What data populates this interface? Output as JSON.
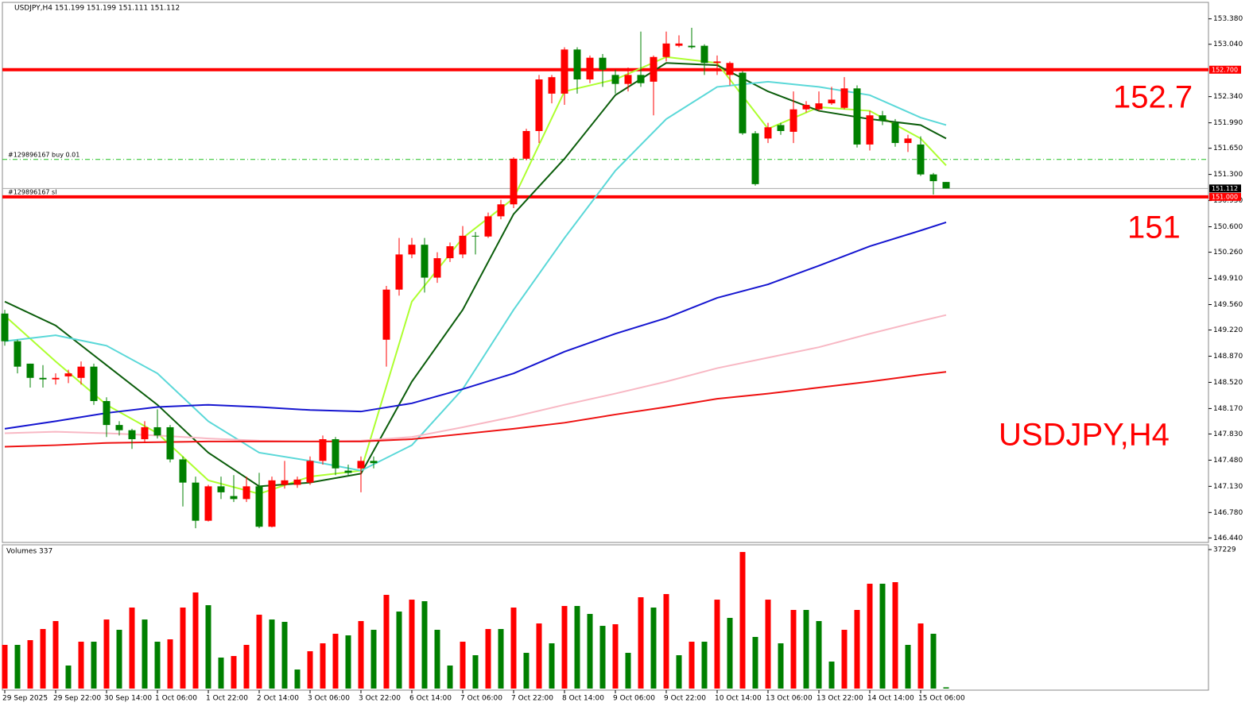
{
  "chart_data": [
    {
      "type": "candlestick",
      "title": "USDJPY,H4  151.199 151.199 151.111 151.112",
      "up_color": "#ff0000",
      "down_color": "#008000",
      "ylim": [
        146.38,
        153.6
      ],
      "yticks": [
        {
          "value": 153.38,
          "label": "153.380"
        },
        {
          "value": 153.04,
          "label": "153.040"
        },
        {
          "value": 152.34,
          "label": "152.340"
        },
        {
          "value": 151.99,
          "label": "151.990"
        },
        {
          "value": 151.65,
          "label": "151.650"
        },
        {
          "value": 151.3,
          "label": "151.300"
        },
        {
          "value": 150.95,
          "label": "150.950"
        },
        {
          "value": 150.6,
          "label": "150.600"
        },
        {
          "value": 150.26,
          "label": "150.260"
        },
        {
          "value": 149.91,
          "label": "149.910"
        },
        {
          "value": 149.56,
          "label": "149.560"
        },
        {
          "value": 149.22,
          "label": "149.220"
        },
        {
          "value": 148.87,
          "label": "148.870"
        },
        {
          "value": 148.52,
          "label": "148.520"
        },
        {
          "value": 148.17,
          "label": "148.170"
        },
        {
          "value": 147.83,
          "label": "147.830"
        },
        {
          "value": 147.48,
          "label": "147.480"
        },
        {
          "value": 147.13,
          "label": "147.130"
        },
        {
          "value": 146.78,
          "label": "146.780"
        },
        {
          "value": 146.44,
          "label": "146.440"
        }
      ],
      "x_labels": [
        {
          "index": 0,
          "label": "29 Sep 2025"
        },
        {
          "index": 4,
          "label": "29 Sep 22:00"
        },
        {
          "index": 8,
          "label": "30 Sep 14:00"
        },
        {
          "index": 12,
          "label": "1 Oct 06:00"
        },
        {
          "index": 16,
          "label": "1 Oct 22:00"
        },
        {
          "index": 20,
          "label": "2 Oct 14:00"
        },
        {
          "index": 24,
          "label": "3 Oct 06:00"
        },
        {
          "index": 28,
          "label": "3 Oct 22:00"
        },
        {
          "index": 32,
          "label": "6 Oct 14:00"
        },
        {
          "index": 36,
          "label": "7 Oct 06:00"
        },
        {
          "index": 40,
          "label": "7 Oct 22:00"
        },
        {
          "index": 44,
          "label": "8 Oct 14:00"
        },
        {
          "index": 48,
          "label": "9 Oct 06:00"
        },
        {
          "index": 52,
          "label": "9 Oct 22:00"
        },
        {
          "index": 56,
          "label": "10 Oct 14:00"
        },
        {
          "index": 60,
          "label": "13 Oct 06:00"
        },
        {
          "index": 64,
          "label": "13 Oct 22:00"
        },
        {
          "index": 68,
          "label": "14 Oct 14:00"
        },
        {
          "index": 72,
          "label": "15 Oct 06:00"
        }
      ],
      "open": [
        149.44,
        149.07,
        148.77,
        148.58,
        148.56,
        148.6,
        148.58,
        148.73,
        148.27,
        147.95,
        147.88,
        147.76,
        147.92,
        147.92,
        147.49,
        147.18,
        146.67,
        147.13,
        147.0,
        146.96,
        147.13,
        146.59,
        147.15,
        147.15,
        147.18,
        147.47,
        147.76,
        147.34,
        147.37,
        147.47,
        149.09,
        149.76,
        150.23,
        150.36,
        149.92,
        150.18,
        150.23,
        150.48,
        150.47,
        150.74,
        150.9,
        151.51,
        151.88,
        152.38,
        152.38,
        152.97,
        152.57,
        152.86,
        152.63,
        152.51,
        152.63,
        152.54,
        152.87,
        153.02,
        153.02,
        153.02,
        152.79,
        152.63,
        152.66,
        151.85,
        151.78,
        151.96,
        151.87,
        152.17,
        152.17,
        152.25,
        152.19,
        152.45,
        151.7,
        152.09,
        151.99,
        151.72,
        151.7,
        151.3,
        151.199
      ],
      "high": [
        149.49,
        149.09,
        148.77,
        148.75,
        148.64,
        148.69,
        148.8,
        148.77,
        148.32,
        148.0,
        147.9,
        148.0,
        148.16,
        147.95,
        147.53,
        147.26,
        147.15,
        147.26,
        147.28,
        147.26,
        147.31,
        147.26,
        147.47,
        147.26,
        147.53,
        147.81,
        147.79,
        147.42,
        147.53,
        147.53,
        149.81,
        150.45,
        150.45,
        150.45,
        150.26,
        150.39,
        150.61,
        150.53,
        150.79,
        150.96,
        151.53,
        151.91,
        152.63,
        152.63,
        153.0,
        153.0,
        152.89,
        152.91,
        152.7,
        152.73,
        153.21,
        152.89,
        153.21,
        153.16,
        153.26,
        153.04,
        152.89,
        152.81,
        152.68,
        151.88,
        151.99,
        151.99,
        152.41,
        152.28,
        152.41,
        152.47,
        152.6,
        152.49,
        152.15,
        152.15,
        152.04,
        151.83,
        151.81,
        151.32,
        151.199
      ],
      "low": [
        149.01,
        148.64,
        148.45,
        148.45,
        148.49,
        148.51,
        148.49,
        148.22,
        147.79,
        147.81,
        147.63,
        147.71,
        147.77,
        147.45,
        146.86,
        146.57,
        146.66,
        146.96,
        146.92,
        146.92,
        146.57,
        146.58,
        147.1,
        147.11,
        147.15,
        147.42,
        147.28,
        147.28,
        147.05,
        147.37,
        148.73,
        149.68,
        150.18,
        149.72,
        149.85,
        150.13,
        150.18,
        150.23,
        150.45,
        150.7,
        150.85,
        151.49,
        151.72,
        152.25,
        152.23,
        152.38,
        152.52,
        152.47,
        152.38,
        152.41,
        152.47,
        152.09,
        152.81,
        153.0,
        152.98,
        152.63,
        152.63,
        152.49,
        151.83,
        151.15,
        151.72,
        151.83,
        151.72,
        152.13,
        152.15,
        152.23,
        152.17,
        151.66,
        151.62,
        151.96,
        151.67,
        151.6,
        151.28,
        151.03,
        151.111
      ],
      "close": [
        149.07,
        148.73,
        148.58,
        148.56,
        148.58,
        148.64,
        148.73,
        148.27,
        147.95,
        147.88,
        147.76,
        147.92,
        147.81,
        147.49,
        147.18,
        146.67,
        147.13,
        147.05,
        146.96,
        147.13,
        146.59,
        147.21,
        147.21,
        147.22,
        147.47,
        147.76,
        147.37,
        147.31,
        147.47,
        147.44,
        149.76,
        150.23,
        150.36,
        149.92,
        150.18,
        150.34,
        150.48,
        150.47,
        150.74,
        150.9,
        151.51,
        151.88,
        152.57,
        152.6,
        152.97,
        152.57,
        152.86,
        152.7,
        152.51,
        152.63,
        152.52,
        152.87,
        153.05,
        153.05,
        153.0,
        152.79,
        152.81,
        152.79,
        151.85,
        151.17,
        151.93,
        151.88,
        152.17,
        152.23,
        152.25,
        152.3,
        152.45,
        151.7,
        152.09,
        152.02,
        151.72,
        151.78,
        151.3,
        151.21,
        151.112
      ],
      "ma_x": [
        0,
        4,
        8,
        12,
        16,
        20,
        24,
        28,
        32,
        36,
        40,
        44,
        48,
        52,
        56,
        60,
        64,
        68,
        72,
        74
      ],
      "series": [
        {
          "color": "#adff2f",
          "values": [
            149.41,
            148.8,
            148.22,
            147.84,
            147.21,
            147.03,
            147.26,
            147.34,
            149.6,
            150.45,
            150.98,
            152.41,
            152.57,
            152.87,
            152.79,
            151.91,
            152.2,
            152.15,
            151.78,
            151.42
          ]
        },
        {
          "color": "#0b5d0b",
          "values": [
            149.6,
            149.28,
            148.75,
            148.22,
            147.58,
            147.13,
            147.18,
            147.3,
            148.53,
            149.49,
            150.77,
            151.51,
            152.36,
            152.79,
            152.76,
            152.41,
            152.15,
            152.04,
            151.96,
            151.78
          ]
        },
        {
          "color": "#5ad8d8",
          "values": [
            149.07,
            149.15,
            149.01,
            148.64,
            148.0,
            147.58,
            147.47,
            147.34,
            147.68,
            148.43,
            149.49,
            150.45,
            151.35,
            152.04,
            152.47,
            152.54,
            152.47,
            152.36,
            152.06,
            151.96
          ]
        },
        {
          "color": "#1515d0",
          "values": [
            147.9,
            148.0,
            148.11,
            148.19,
            148.22,
            148.19,
            148.15,
            148.13,
            148.24,
            148.43,
            148.64,
            148.93,
            149.17,
            149.38,
            149.65,
            149.83,
            150.08,
            150.34,
            150.55,
            150.66
          ]
        },
        {
          "color": "#f8b8c4",
          "values": [
            147.84,
            147.86,
            147.84,
            147.81,
            147.77,
            147.74,
            147.73,
            147.74,
            147.79,
            147.92,
            148.06,
            148.22,
            148.37,
            148.53,
            148.71,
            148.85,
            148.99,
            149.17,
            149.34,
            149.42
          ]
        },
        {
          "color": "#ee1111",
          "values": [
            147.66,
            147.68,
            147.71,
            147.72,
            147.73,
            147.73,
            147.73,
            147.73,
            147.76,
            147.83,
            147.9,
            147.98,
            148.09,
            148.19,
            148.3,
            148.37,
            148.45,
            148.53,
            148.62,
            148.66
          ]
        }
      ],
      "levels": [
        {
          "value": 152.7,
          "label": "152.700",
          "color": "#ff0000"
        },
        {
          "value": 151.0,
          "label": "151.000",
          "color": "#ff0000",
          "text": "#129896167 sl"
        }
      ],
      "order_line": {
        "value": 151.5,
        "text": "#129896167 buy 0.01",
        "color": "#1fbf1f"
      },
      "bid": {
        "value": 151.112,
        "label": "151.112"
      },
      "annotations": [
        "152.7",
        "151",
        "USDJPY,H4"
      ]
    },
    {
      "type": "bar",
      "title": "Volumes 337",
      "up_color": "#ff0000",
      "down_color": "#008000",
      "ylim": [
        0,
        37229
      ],
      "yticks": [
        37229
      ],
      "values": [
        11700,
        11700,
        12970,
        15950,
        18080,
        6170,
        12550,
        12550,
        18500,
        15740,
        21700,
        18500,
        12550,
        13190,
        21700,
        25740,
        22330,
        8300,
        8720,
        11700,
        19780,
        18500,
        17870,
        5100,
        10000,
        12120,
        14680,
        14250,
        18080,
        15740,
        25100,
        20630,
        23820,
        23400,
        15740,
        6170,
        12550,
        8930,
        15950,
        15950,
        21700,
        9570,
        17440,
        12120,
        22120,
        22120,
        19990,
        16800,
        17230,
        9570,
        24460,
        21700,
        25310,
        8930,
        12550,
        12550,
        23820,
        18930,
        36580,
        13830,
        23820,
        12120,
        21060,
        21060,
        18080,
        7230,
        15740,
        21060,
        28080,
        28080,
        28500,
        11700,
        17440,
        14680,
        337
      ]
    }
  ]
}
